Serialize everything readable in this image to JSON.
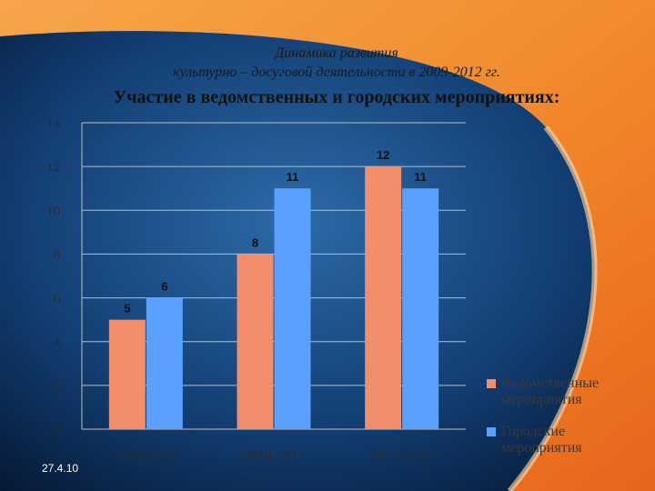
{
  "header": {
    "subtitle_line1": "Динамика развития",
    "subtitle_line2": "культурно – досуговой деятельности в 2009-2012 гг.",
    "title": "Участие в ведомственных и городских мероприятиях:"
  },
  "footer": {
    "date": "27.4.10"
  },
  "colors": {
    "series1": "#f28e6b",
    "series2": "#5aa0ff",
    "axis_text": "#2c2c2c",
    "grid": "#bcbcbc"
  },
  "chart_data": {
    "type": "bar",
    "categories": [
      "2009-2010",
      "2010-2011",
      "2011-2012"
    ],
    "series": [
      {
        "name": "Ведомственные мероприятия",
        "values": [
          5,
          8,
          12
        ]
      },
      {
        "name": "Городские мероприятия",
        "values": [
          6,
          11,
          11
        ]
      }
    ],
    "ylim": [
      0,
      14
    ],
    "yticks": [
      0,
      2,
      4,
      6,
      8,
      10,
      12,
      14
    ],
    "grid": true,
    "legend_position": "right"
  }
}
